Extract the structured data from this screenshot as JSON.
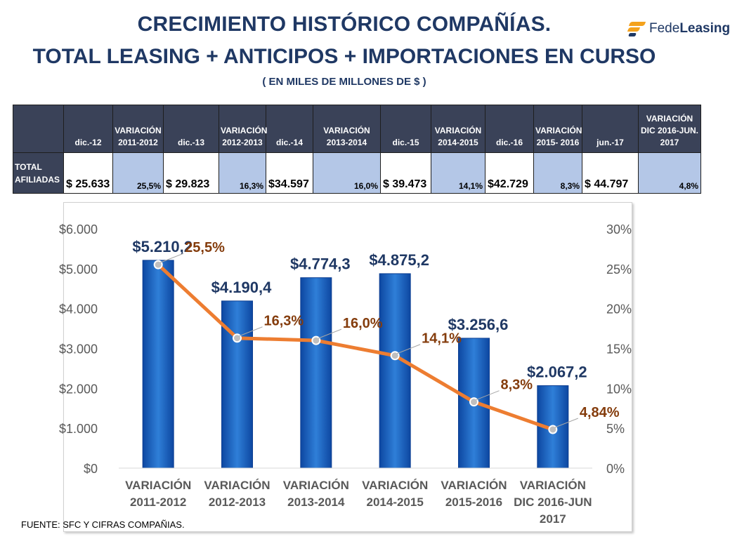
{
  "header": {
    "title_line1": "CRECIMIENTO HISTÓRICO COMPAÑÍAS.",
    "title_line2": "TOTAL LEASING + ANTICIPOS + IMPORTACIONES EN CURSO",
    "subtitle": "( EN MILES DE  MILLONES DE $ )"
  },
  "logo": {
    "part1": "Fede",
    "part2": "Leasing",
    "icon": "fedeleasing-logo-icon"
  },
  "table": {
    "columns": [
      "dic.-12",
      "VARIACIÓN 2011-2012",
      "dic.-13",
      "VARIACIÓN 2012-2013",
      "dic.-14",
      "VARIACIÓN 2013-2014",
      "dic.-15",
      "VARIACIÓN 2014-2015",
      "dic.-16",
      "VARIACIÓN 2015- 2016",
      "jun.-17",
      "VARIACIÓN DIC 2016-JUN. 2017"
    ],
    "row_label": "TOTAL AFILIADAS",
    "values": [
      "$ 25.633",
      "25,5%",
      "$   29.823",
      "16,3%",
      "$34.597",
      "16,0%",
      "$ 39.473",
      "14,1%",
      "$42.729",
      "8,3%",
      "$    44.797",
      "4,8%"
    ]
  },
  "chart_data": {
    "type": "bar",
    "categories": [
      "VARIACIÓN 2011-2012",
      "VARIACIÓN 2012-2013",
      "VARIACIÓN 2013-2014",
      "VARIACIÓN 2014-2015",
      "VARIACIÓN 2015-2016",
      "VARIACIÓN DIC 2016-JUN 2017"
    ],
    "series": [
      {
        "type": "bar",
        "axis": "left",
        "values": [
          5210.2,
          4190.4,
          4774.3,
          4875.2,
          3256.6,
          2067.2
        ],
        "labels": [
          "$5.210,2",
          "$4.190,4",
          "$4.774,3",
          "$4.875,2",
          "$3.256,6",
          "$2.067,2"
        ]
      },
      {
        "type": "line",
        "axis": "right",
        "values": [
          25.5,
          16.3,
          16.0,
          14.1,
          8.3,
          4.84
        ],
        "labels": [
          "25,5%",
          "16,3%",
          "16,0%",
          "14,1%",
          "8,3%",
          "4,84%"
        ]
      }
    ],
    "y_left": {
      "ylim": [
        0,
        6000
      ],
      "ticks": [
        "$0",
        "$1.000",
        "$2.000",
        "$3.000",
        "$4.000",
        "$5.000",
        "$6.000"
      ]
    },
    "y_right": {
      "ylim": [
        0,
        30
      ],
      "ticks": [
        "0%",
        "5%",
        "10%",
        "15%",
        "20%",
        "25%",
        "30%"
      ]
    },
    "grid": false,
    "legend": "none",
    "colors": {
      "bar": "#1565c0",
      "line": "#ed7d31",
      "bar_label": "#1f3864",
      "line_label": "#843c0c"
    }
  },
  "source": "FUENTE: SFC Y CIFRAS COMPAÑIAS."
}
